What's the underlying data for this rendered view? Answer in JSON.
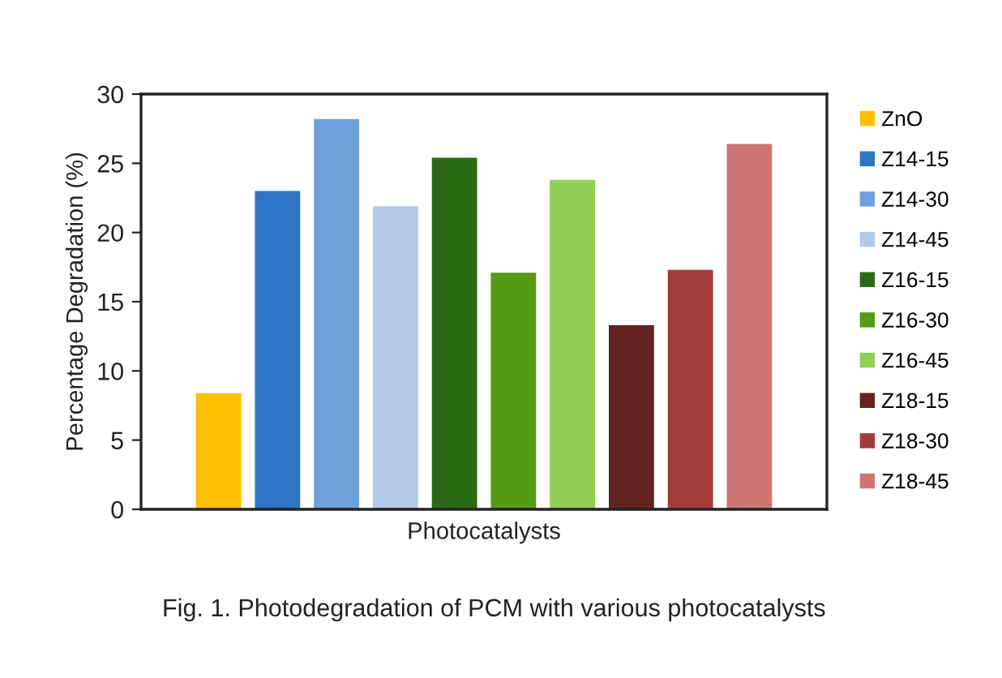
{
  "chart_data": {
    "type": "bar",
    "categories": [
      null
    ],
    "ylabel": "Percentage Degradation (%)",
    "xlabel": "Photocatalysts",
    "ylim": [
      0,
      30
    ],
    "yticks": [
      0,
      5,
      10,
      15,
      20,
      25,
      30
    ],
    "grid": false,
    "legend": "right",
    "annotations": [
      "Fig. 1. Photodegradation of PCM with various photocatalysts"
    ],
    "series": [
      {
        "name": "ZnO",
        "color": "#ffc000",
        "values": [
          8.4
        ]
      },
      {
        "name": "Z14-15",
        "color": "#2e75c6",
        "values": [
          23.0
        ]
      },
      {
        "name": "Z14-30",
        "color": "#6fa0dc",
        "values": [
          28.2
        ]
      },
      {
        "name": "Z14-45",
        "color": "#b4c9e6",
        "values": [
          21.9
        ]
      },
      {
        "name": "Z16-15",
        "color": "#2b6b14",
        "values": [
          25.4
        ]
      },
      {
        "name": "Z16-30",
        "color": "#559b13",
        "values": [
          17.1
        ]
      },
      {
        "name": "Z16-45",
        "color": "#8fcf55",
        "values": [
          23.8
        ]
      },
      {
        "name": "Z18-15",
        "color": "#622322",
        "values": [
          13.3
        ]
      },
      {
        "name": "Z18-30",
        "color": "#a23c3a",
        "values": [
          17.3
        ]
      },
      {
        "name": "Z18-45",
        "color": "#cf7674",
        "values": [
          26.4
        ]
      }
    ]
  }
}
